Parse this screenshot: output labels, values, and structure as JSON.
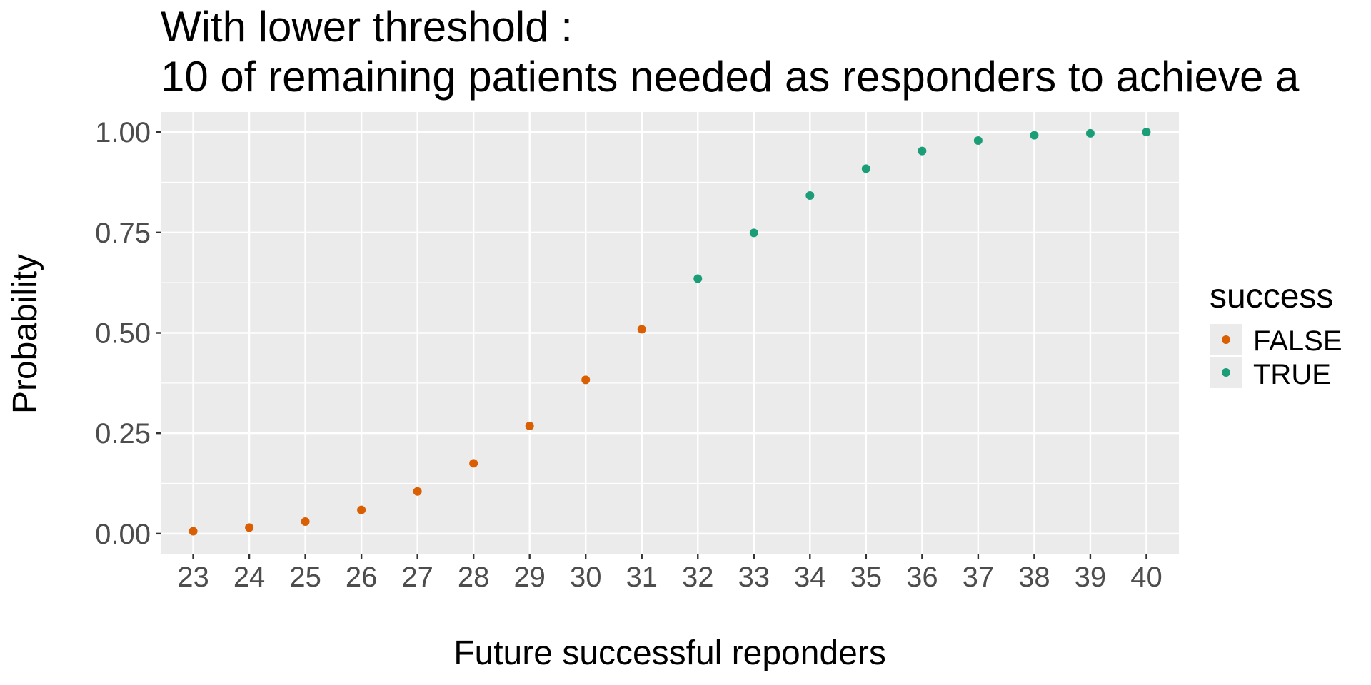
{
  "chart_data": {
    "type": "scatter",
    "title_lines": [
      "With lower threshold :",
      "10 of remaining patients needed as responders to achieve a"
    ],
    "xlabel": "Future successful reponders",
    "ylabel": "Probability",
    "xlim": [
      22.42,
      40.58
    ],
    "ylim": [
      -0.05,
      1.05
    ],
    "x_ticks": [
      23,
      24,
      25,
      26,
      27,
      28,
      29,
      30,
      31,
      32,
      33,
      34,
      35,
      36,
      37,
      38,
      39,
      40
    ],
    "y_ticks": [
      0.0,
      0.25,
      0.5,
      0.75,
      1.0
    ],
    "y_tick_labels": [
      "0.00",
      "0.25",
      "0.50",
      "0.75",
      "1.00"
    ],
    "grid": true,
    "legend": {
      "title": "success",
      "placement": "right",
      "entries": [
        "FALSE",
        "TRUE"
      ]
    },
    "series": [
      {
        "name": "FALSE",
        "color": "#D95F02",
        "points": [
          {
            "x": 23,
            "y": 0.006
          },
          {
            "x": 24,
            "y": 0.015
          },
          {
            "x": 25,
            "y": 0.03
          },
          {
            "x": 26,
            "y": 0.059
          },
          {
            "x": 27,
            "y": 0.105
          },
          {
            "x": 28,
            "y": 0.175
          },
          {
            "x": 29,
            "y": 0.268
          },
          {
            "x": 30,
            "y": 0.383
          },
          {
            "x": 31,
            "y": 0.509
          }
        ]
      },
      {
        "name": "TRUE",
        "color": "#1B9E77",
        "points": [
          {
            "x": 32,
            "y": 0.635
          },
          {
            "x": 33,
            "y": 0.749
          },
          {
            "x": 34,
            "y": 0.842
          },
          {
            "x": 35,
            "y": 0.909
          },
          {
            "x": 36,
            "y": 0.953
          },
          {
            "x": 37,
            "y": 0.979
          },
          {
            "x": 38,
            "y": 0.992
          },
          {
            "x": 39,
            "y": 0.997
          },
          {
            "x": 40,
            "y": 1.0
          }
        ]
      }
    ]
  }
}
